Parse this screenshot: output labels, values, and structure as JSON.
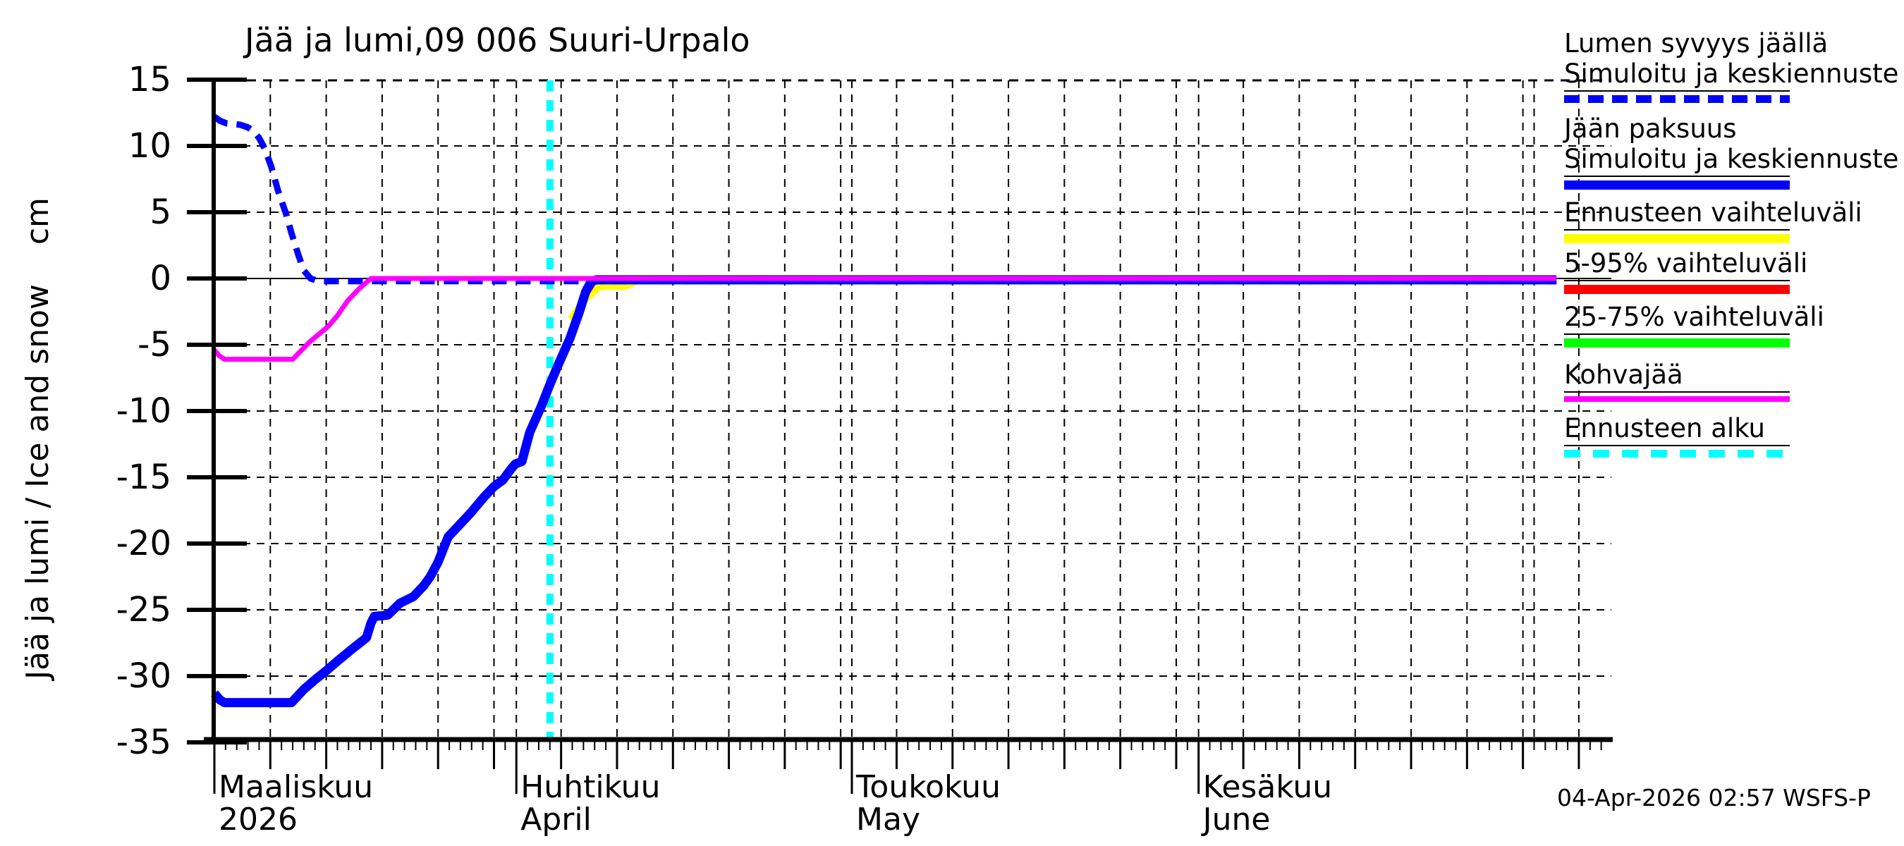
{
  "title": "Jää ja lumi,09 006 Suuri-Urpalo",
  "y_axis_label": "Jää ja lumi / Ice and snow    cm",
  "timestamp": "04-Apr-2026 02:57 WSFS-P",
  "colors": {
    "simulated_line": "#0000ff",
    "forecast_range": "#ffff00",
    "range_5_95": "#ff0000",
    "range_25_75": "#00ff00",
    "kohvajaa": "#ff00ff",
    "forecast_start": "#00ffff",
    "axis": "#000000"
  },
  "legend": {
    "entries": [
      {
        "label": "Lumen syvyys jäällä",
        "label2": "Simuloitu ja keskiennuste",
        "swatch": "dashed-blue"
      },
      {
        "label": "Jään paksuus",
        "label2": "Simuloitu ja keskiennuste",
        "swatch": "solid-blue"
      },
      {
        "label": "Ennusteen vaihteluväli",
        "label2": "",
        "swatch": "solid-yellow"
      },
      {
        "label": "5-95% vaihteluväli",
        "label2": "",
        "swatch": "solid-red"
      },
      {
        "label": "25-75% vaihteluväli",
        "label2": "",
        "swatch": "solid-green"
      },
      {
        "label": "Kohvajää",
        "label2": "",
        "swatch": "solid-magenta"
      },
      {
        "label": "Ennusteen alku",
        "label2": "",
        "swatch": "dashed-cyan"
      }
    ]
  },
  "chart_data": {
    "type": "line",
    "title": "Jää ja lumi,09 006 Suuri-Urpalo",
    "ylabel": "Jää ja lumi / Ice and snow (cm)",
    "ylim": [
      -35,
      15
    ],
    "y_ticks": [
      15,
      10,
      5,
      0,
      -5,
      -10,
      -15,
      -20,
      -25,
      -30,
      -35
    ],
    "y_grid_values": [
      10,
      5,
      -5,
      -10,
      -15,
      -20,
      -25,
      -30
    ],
    "x_axis_start_date": "2026-03-05",
    "x_axis_total_days": 125,
    "x_month_labels": [
      {
        "day": 0,
        "line1": "Maaliskuu",
        "line2": "2026"
      },
      {
        "day": 27,
        "line1": "Huhtikuu",
        "line2": "April"
      },
      {
        "day": 57,
        "line1": "Toukokuu",
        "line2": "May"
      },
      {
        "day": 88,
        "line1": "Kesäkuu",
        "line2": "June"
      }
    ],
    "x_month_tick_days": [
      0,
      27,
      57,
      88
    ],
    "x_medium_tick_days": [
      5,
      10,
      15,
      20,
      25,
      31,
      36,
      41,
      46,
      51,
      56,
      61,
      66,
      71,
      76,
      81,
      86,
      92,
      97,
      102,
      107,
      112,
      117,
      122
    ],
    "x_grid_days": [
      5,
      10,
      15,
      20,
      25,
      27,
      31,
      36,
      41,
      46,
      51,
      56,
      57,
      61,
      66,
      71,
      76,
      81,
      86,
      88,
      92,
      97,
      102,
      107,
      112,
      117,
      118,
      122
    ],
    "forecast_start_day": 30,
    "forecast_start_date": "2026-04-04",
    "grid": true,
    "legend_position": "right",
    "series": [
      {
        "name": "Lumen syvyys jäällä (Simuloitu ja keskiennuste)",
        "unit": "cm",
        "color": "#0000ff",
        "style": "dashed",
        "width": 9,
        "points": [
          [
            0,
            12.2
          ],
          [
            0.5,
            11.9
          ],
          [
            1.1,
            11.7
          ],
          [
            2.3,
            11.6
          ],
          [
            3.0,
            11.4
          ],
          [
            3.5,
            11.1
          ],
          [
            4.0,
            10.6
          ],
          [
            4.5,
            9.8
          ],
          [
            5.1,
            8.4
          ],
          [
            5.7,
            6.6
          ],
          [
            6.4,
            4.9
          ],
          [
            6.9,
            3.4
          ],
          [
            7.5,
            1.8
          ],
          [
            8.0,
            0.6
          ],
          [
            8.6,
            0.0
          ],
          [
            9.3,
            -0.2
          ],
          [
            120,
            -0.2
          ]
        ]
      },
      {
        "name": "Jään paksuus (Simuloitu ja keskiennuste)",
        "unit": "cm",
        "color": "#0000ff",
        "style": "solid",
        "width": 13,
        "points": [
          [
            0,
            -31.3
          ],
          [
            0.5,
            -31.8
          ],
          [
            0.9,
            -32.0
          ],
          [
            6.9,
            -32.0
          ],
          [
            8.0,
            -31.0
          ],
          [
            9.1,
            -30.2
          ],
          [
            10.0,
            -29.6
          ],
          [
            11.1,
            -28.8
          ],
          [
            12.4,
            -27.9
          ],
          [
            13.6,
            -27.1
          ],
          [
            14.0,
            -26.0
          ],
          [
            14.3,
            -25.5
          ],
          [
            15.5,
            -25.4
          ],
          [
            16.6,
            -24.5
          ],
          [
            17.8,
            -24.0
          ],
          [
            18.7,
            -23.2
          ],
          [
            19.3,
            -22.5
          ],
          [
            20.0,
            -21.4
          ],
          [
            20.9,
            -19.5
          ],
          [
            21.9,
            -18.6
          ],
          [
            22.9,
            -17.7
          ],
          [
            24.1,
            -16.5
          ],
          [
            25.0,
            -15.7
          ],
          [
            25.8,
            -15.2
          ],
          [
            26.5,
            -14.4
          ],
          [
            26.9,
            -14.0
          ],
          [
            27.5,
            -13.8
          ],
          [
            28.2,
            -11.6
          ],
          [
            29.2,
            -9.7
          ],
          [
            30.0,
            -8.0
          ],
          [
            30.7,
            -6.6
          ],
          [
            31.8,
            -4.5
          ],
          [
            32.6,
            -2.6
          ],
          [
            33.2,
            -1.0
          ],
          [
            33.7,
            -0.2
          ],
          [
            34.2,
            -0.1
          ],
          [
            120,
            -0.1
          ]
        ]
      },
      {
        "name": "Kohvajää",
        "unit": "cm",
        "color": "#ff00ff",
        "style": "solid",
        "width": 7,
        "points": [
          [
            0,
            -5.4
          ],
          [
            0.4,
            -5.8
          ],
          [
            0.9,
            -6.1
          ],
          [
            7.0,
            -6.1
          ],
          [
            8.5,
            -4.8
          ],
          [
            10.2,
            -3.6
          ],
          [
            11.0,
            -2.8
          ],
          [
            11.9,
            -1.7
          ],
          [
            12.9,
            -0.8
          ],
          [
            14.0,
            0.0
          ],
          [
            120,
            0.0
          ]
        ]
      }
    ],
    "bands": [
      {
        "name": "Ennusteen vaihteluväli",
        "color": "#ffff00",
        "polygon": [
          [
            31.6,
            -2.9
          ],
          [
            33.3,
            -1.0
          ],
          [
            33.8,
            -0.25
          ],
          [
            38.3,
            -0.3
          ],
          [
            36.8,
            -0.85
          ],
          [
            34.6,
            -0.85
          ],
          [
            33.2,
            -1.9
          ],
          [
            32.0,
            -3.2
          ]
        ]
      },
      {
        "name": "5-95% vaihteluväli",
        "color": "#ff0000",
        "polygon": [
          [
            33.2,
            -1.3
          ],
          [
            33.6,
            -0.4
          ],
          [
            34.1,
            -0.45
          ],
          [
            33.5,
            -1.25
          ]
        ]
      }
    ]
  }
}
